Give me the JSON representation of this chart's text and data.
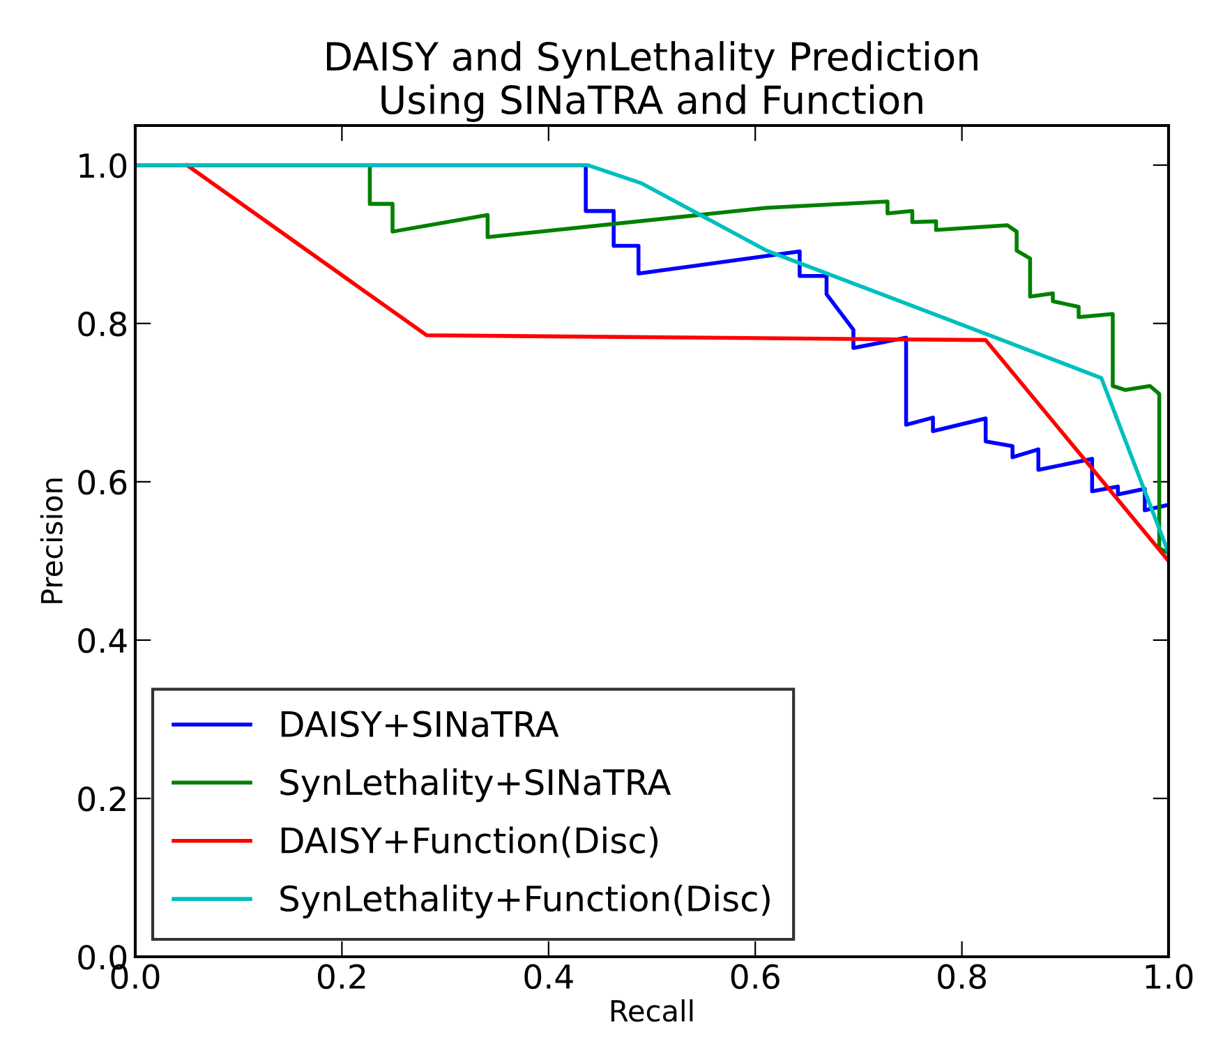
{
  "chart_data": {
    "type": "line",
    "title": "DAISY and SynLethality Prediction\nUsing SINaTRA and Function",
    "xlabel": "Recall",
    "ylabel": "Precision",
    "xlim": [
      0,
      1
    ],
    "ylim": [
      0,
      1.05
    ],
    "xticks": [
      {
        "value": 0,
        "label": "0.0"
      },
      0.2,
      0.4,
      0.6,
      0.8,
      {
        "value": 1,
        "label": "1.0"
      }
    ],
    "yticks": [
      {
        "value": 0,
        "label": "0.0"
      },
      0.2,
      0.4,
      0.6,
      0.8,
      {
        "value": 1,
        "label": "1.0"
      }
    ],
    "grid": false,
    "legend": "bottom left",
    "marker": "none",
    "line_style": "solid",
    "series": [
      {
        "name": "DAISY+SINaTRA",
        "color": "#0000ff",
        "x": [
          0,
          0.436,
          0.436,
          0.463,
          0.463,
          0.487,
          0.487,
          0.643,
          0.643,
          0.669,
          0.669,
          0.695,
          0.695,
          0.746,
          0.746,
          0.772,
          0.772,
          0.823,
          0.823,
          0.849,
          0.849,
          0.874,
          0.874,
          0.926,
          0.926,
          0.951,
          0.951,
          0.977,
          0.977,
          1.0
        ],
        "values": [
          1.0,
          1.0,
          0.942,
          0.942,
          0.898,
          0.898,
          0.863,
          0.891,
          0.86,
          0.86,
          0.837,
          0.792,
          0.769,
          0.782,
          0.672,
          0.681,
          0.664,
          0.68,
          0.651,
          0.645,
          0.631,
          0.641,
          0.615,
          0.629,
          0.588,
          0.594,
          0.584,
          0.591,
          0.564,
          0.571
        ]
      },
      {
        "name": "SynLethality+SINaTRA",
        "color": "#008000",
        "x": [
          0,
          0.227,
          0.227,
          0.249,
          0.249,
          0.341,
          0.341,
          0.611,
          0.728,
          0.728,
          0.752,
          0.752,
          0.775,
          0.775,
          0.844,
          0.853,
          0.853,
          0.866,
          0.866,
          0.888,
          0.888,
          0.913,
          0.913,
          0.946,
          0.946,
          0.958,
          0.982,
          0.991,
          0.991,
          1.0
        ],
        "values": [
          1.0,
          1.0,
          0.951,
          0.951,
          0.916,
          0.937,
          0.909,
          0.946,
          0.954,
          0.939,
          0.942,
          0.928,
          0.929,
          0.918,
          0.924,
          0.916,
          0.892,
          0.882,
          0.834,
          0.838,
          0.828,
          0.821,
          0.808,
          0.812,
          0.721,
          0.716,
          0.721,
          0.711,
          0.516,
          0.51
        ]
      },
      {
        "name": "DAISY+Function(Disc)",
        "color": "#ff0000",
        "x": [
          0.05,
          0.282,
          0.823,
          1.0
        ],
        "values": [
          1.0,
          0.785,
          0.779,
          0.5
        ]
      },
      {
        "name": "SynLethality+Function(Disc)",
        "color": "#00bfbf",
        "x": [
          0,
          0.438,
          0.49,
          0.611,
          0.823,
          0.935,
          1.0
        ],
        "values": [
          1.0,
          1.0,
          0.977,
          0.892,
          0.787,
          0.731,
          0.51
        ]
      }
    ]
  }
}
